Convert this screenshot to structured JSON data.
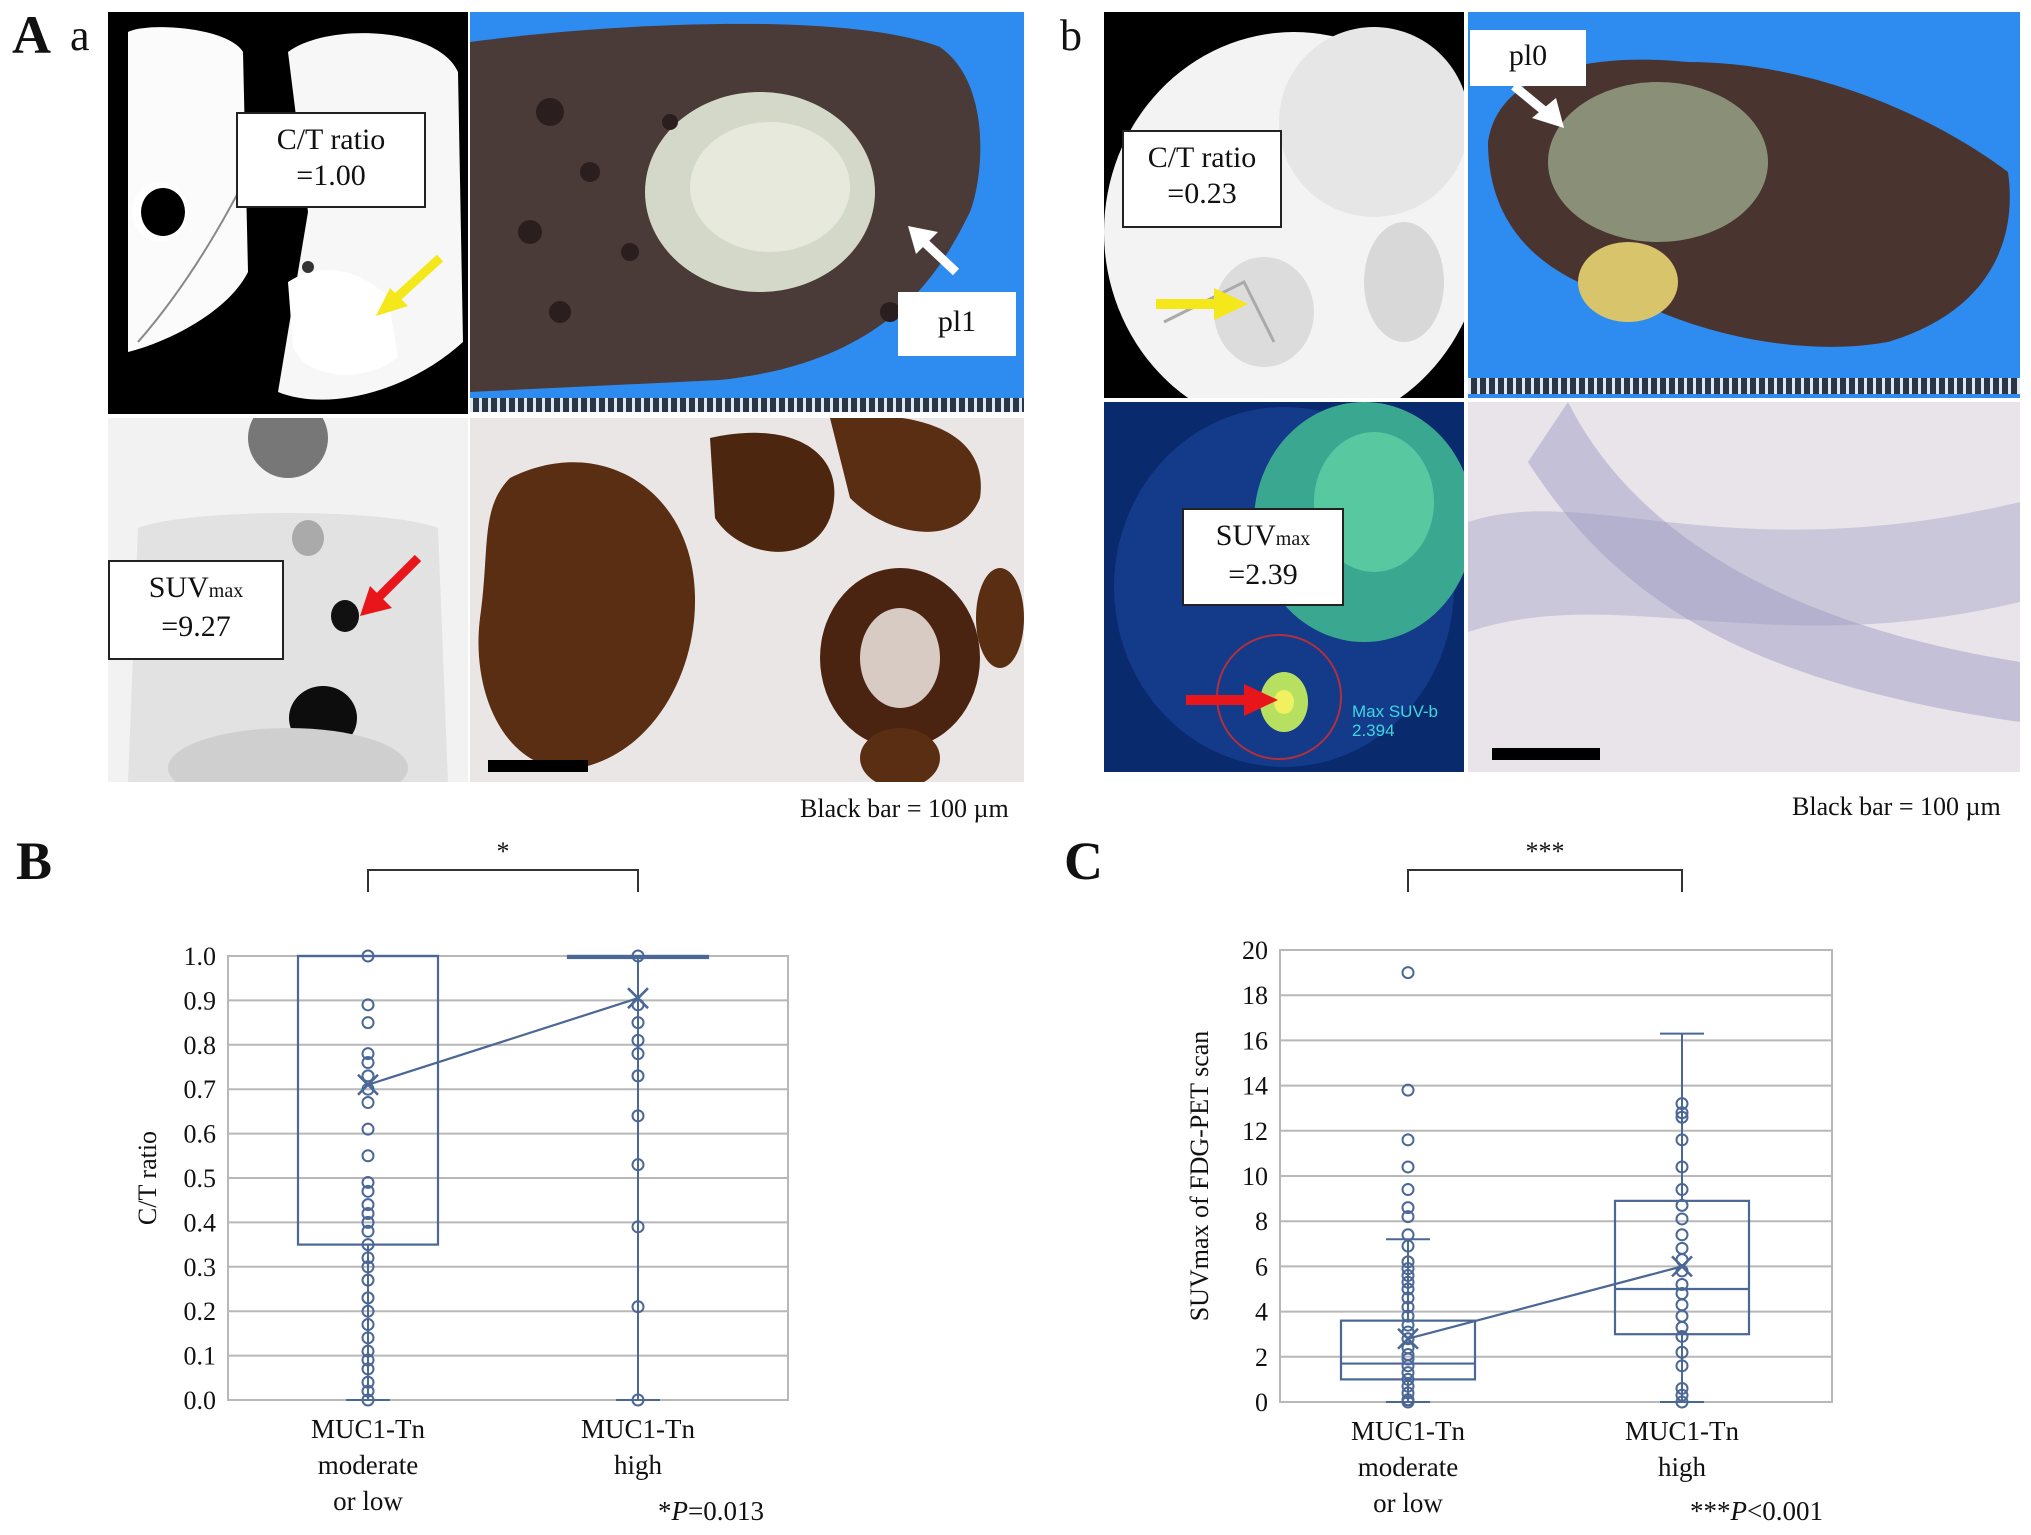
{
  "panels": {
    "A": {
      "letter": "A",
      "sub": "a"
    },
    "b": {
      "sub": "b"
    },
    "B": {
      "letter": "B"
    },
    "C": {
      "letter": "C"
    }
  },
  "case_a": {
    "ct_label": "C/T ratio",
    "ct_value": "=1.00",
    "suv_label": "SUV",
    "suv_sub": "max",
    "suv_value": "=9.27",
    "pleura_label": "pl1",
    "scale_note": "Black bar = 100 µm"
  },
  "case_b": {
    "ct_label": "C/T ratio",
    "ct_value": "=0.23",
    "suv_label": "SUV",
    "suv_sub": "max",
    "suv_value": "=2.39",
    "pleura_label": "pl0",
    "scale_note": "Black bar = 100 µm",
    "pet_overlay_line1": "Max SUV-b",
    "pet_overlay_line2": "2.394"
  },
  "colors": {
    "axis_blue": "#4a6796",
    "grid": "#b8b8b8",
    "ct_bg": "#000000",
    "specimen_bg": "#2e8cf0",
    "pet_bg": "#0a2a6e",
    "arrow_yellow": "#f4e81a",
    "arrow_red": "#e8161b",
    "arrow_white": "#ffffff"
  },
  "chart_B": {
    "type": "box",
    "ylabel": "C/T ratio",
    "yticks": [
      "0.0",
      "0.1",
      "0.2",
      "0.3",
      "0.4",
      "0.5",
      "0.6",
      "0.7",
      "0.8",
      "0.9",
      "1.0"
    ],
    "ylim": [
      0,
      1.0
    ],
    "categories": [
      [
        "MUC1-Tn",
        "moderate",
        "or low"
      ],
      [
        "MUC1-Tn",
        "high"
      ]
    ],
    "significance": "*",
    "pvalue_prefix": "*",
    "pvalue_italic": "P",
    "pvalue_rest": "=0.013",
    "chart_data": {
      "type": "box",
      "groups": [
        {
          "name": "MUC1-Tn moderate or low",
          "q1": 0.35,
          "median": 1.0,
          "q3": 1.0,
          "min": 0.0,
          "max": 1.0,
          "mean": 0.71,
          "points": [
            1.0,
            0.89,
            0.85,
            0.78,
            0.76,
            0.73,
            0.7,
            0.67,
            0.61,
            0.55,
            0.49,
            0.47,
            0.44,
            0.42,
            0.4,
            0.38,
            0.35,
            0.32,
            0.3,
            0.27,
            0.23,
            0.2,
            0.17,
            0.14,
            0.11,
            0.09,
            0.07,
            0.04,
            0.02,
            0.0
          ]
        },
        {
          "name": "MUC1-Tn high",
          "q1": 1.0,
          "median": 1.0,
          "q3": 1.0,
          "min": 0.0,
          "max": 1.0,
          "mean": 0.905,
          "points": [
            1.0,
            0.89,
            0.85,
            0.81,
            0.78,
            0.73,
            0.64,
            0.53,
            0.39,
            0.21,
            0.0
          ]
        }
      ]
    }
  },
  "chart_C": {
    "type": "box",
    "ylabel": "SUVmax of FDG-PET scan",
    "yticks": [
      "0",
      "2",
      "4",
      "6",
      "8",
      "10",
      "12",
      "14",
      "16",
      "18",
      "20"
    ],
    "ylim": [
      0,
      20
    ],
    "categories": [
      [
        "MUC1-Tn",
        "moderate",
        "or low"
      ],
      [
        "MUC1-Tn",
        "high"
      ]
    ],
    "significance": "***",
    "pvalue_prefix": "***",
    "pvalue_italic": "P",
    "pvalue_rest": "<0.001",
    "chart_data": {
      "type": "box",
      "groups": [
        {
          "name": "MUC1-Tn moderate or low",
          "q1": 1.0,
          "median": 1.7,
          "q3": 3.6,
          "min": 0.0,
          "max": 7.2,
          "mean": 2.8,
          "points": [
            19.0,
            13.8,
            11.6,
            10.4,
            9.4,
            8.6,
            8.2,
            7.4,
            6.9,
            6.2,
            5.9,
            5.6,
            5.3,
            5.0,
            4.6,
            4.2,
            3.8,
            3.4,
            3.1,
            2.8,
            2.4,
            2.1,
            1.9,
            1.6,
            1.3,
            1.0,
            0.7,
            0.4,
            0.1,
            0.0
          ]
        },
        {
          "name": "MUC1-Tn high",
          "q1": 3.0,
          "median": 5.0,
          "q3": 8.9,
          "min": 0.0,
          "max": 16.3,
          "mean": 6.0,
          "points": [
            13.2,
            12.8,
            12.6,
            11.6,
            10.4,
            9.4,
            8.7,
            8.1,
            7.4,
            6.8,
            6.3,
            5.8,
            5.2,
            4.8,
            4.3,
            3.8,
            3.3,
            2.9,
            2.2,
            1.6,
            0.6,
            0.3,
            0.0
          ]
        }
      ]
    }
  }
}
